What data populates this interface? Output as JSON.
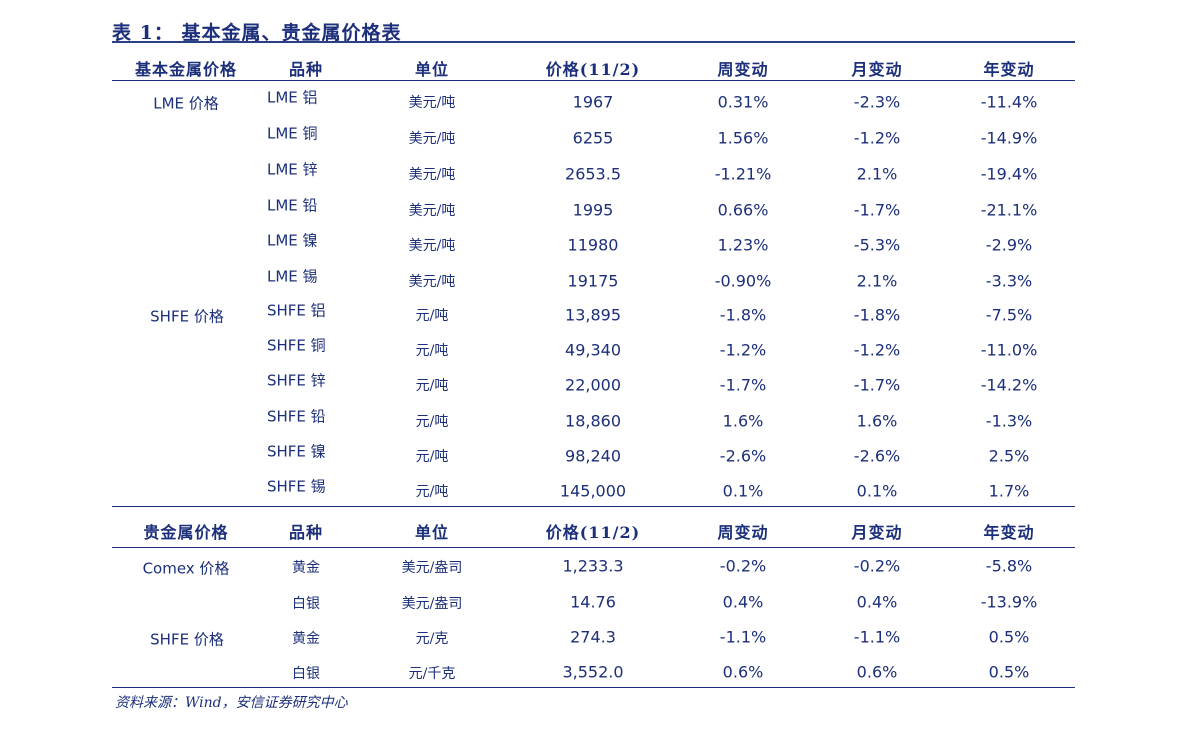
{
  "title": "表 1：  基本金属、贵金属价格表",
  "source": "资料来源：Wind，安信证券研究中心",
  "base_section": {
    "headers": [
      "基本金属价格",
      "品种",
      "单位",
      "价格(11/2)",
      "周变动",
      "月变动",
      "年变动"
    ],
    "groups": [
      "LME 价格",
      "SHFE 价格"
    ],
    "rows": [
      [
        "LME 铝",
        "美元/吨",
        "1967",
        "0.31%",
        "-2.3%",
        "-11.4%"
      ],
      [
        "LME 铜",
        "美元/吨",
        "6255",
        "1.56%",
        "-1.2%",
        "-14.9%"
      ],
      [
        "LME 锌",
        "美元/吨",
        "2653.5",
        "-1.21%",
        "2.1%",
        "-19.4%"
      ],
      [
        "LME 铅",
        "美元/吨",
        "1995",
        "0.66%",
        "-1.7%",
        "-21.1%"
      ],
      [
        "LME 镍",
        "美元/吨",
        "11980",
        "1.23%",
        "-5.3%",
        "-2.9%"
      ],
      [
        "LME 锡",
        "美元/吨",
        "19175",
        "-0.90%",
        "2.1%",
        "-3.3%"
      ],
      [
        "SHFE 铝",
        "元/吨",
        "13,895",
        "-1.8%",
        "-1.8%",
        "-7.5%"
      ],
      [
        "SHFE 铜",
        "元/吨",
        "49,340",
        "-1.2%",
        "-1.2%",
        "-11.0%"
      ],
      [
        "SHFE 锌",
        "元/吨",
        "22,000",
        "-1.7%",
        "-1.7%",
        "-14.2%"
      ],
      [
        "SHFE 铅",
        "元/吨",
        "18,860",
        "1.6%",
        "1.6%",
        "-1.3%"
      ],
      [
        "SHFE 镍",
        "元/吨",
        "98,240",
        "-2.6%",
        "-2.6%",
        "2.5%"
      ],
      [
        "SHFE 锡",
        "元/吨",
        "145,000",
        "0.1%",
        "0.1%",
        "1.7%"
      ]
    ]
  },
  "precious_section": {
    "headers": [
      "贵金属价格",
      "品种",
      "单位",
      "价格(11/2)",
      "周变动",
      "月变动",
      "年变动"
    ],
    "groups": [
      "Comex 价格",
      "SHFE 价格"
    ],
    "rows": [
      [
        "黄金",
        "美元/盎司",
        "1,233.3",
        "-0.2%",
        "-0.2%",
        "-5.8%"
      ],
      [
        "白银",
        "美元/盎司",
        "14.76",
        "0.4%",
        "0.4%",
        "-13.9%"
      ],
      [
        "黄金",
        "元/克",
        "274.3",
        "-1.1%",
        "-1.1%",
        "0.5%"
      ],
      [
        "白银",
        "元/千克",
        "3,552.0",
        "0.6%",
        "0.6%",
        "0.5%"
      ]
    ]
  },
  "colors": {
    "text": "#1c2f7a",
    "rule": "#2a3f86"
  }
}
